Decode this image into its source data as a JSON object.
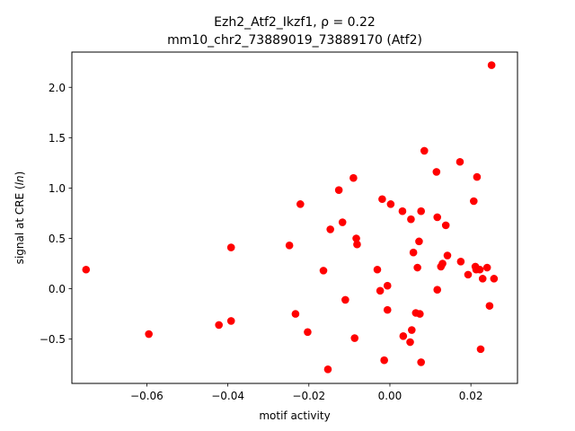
{
  "title_line1": "Ezh2_Atf2_Ikzf1, ",
  "title_rho": "ρ = 0.22",
  "title_line2": "mm10_chr2_73889019_73889170 (Atf2)",
  "chart_data": {
    "type": "scatter",
    "xlabel": "motif activity",
    "ylabel_prefix": "signal at CRE (",
    "ylabel_italic": "ln",
    "ylabel_suffix": ")",
    "xlim": [
      -0.0785,
      0.0315
    ],
    "ylim": [
      -0.94,
      2.35
    ],
    "xticks": [
      -0.06,
      -0.04,
      -0.02,
      0.0,
      0.02
    ],
    "xtick_labels": [
      "−0.06",
      "−0.04",
      "−0.02",
      "0.00",
      "0.02"
    ],
    "yticks": [
      -0.5,
      0.0,
      0.5,
      1.0,
      1.5,
      2.0
    ],
    "ytick_labels": [
      "−0.5",
      "0.0",
      "0.5",
      "1.0",
      "1.5",
      "2.0"
    ],
    "marker_color": "#ff0000",
    "points": [
      [
        -0.075,
        0.19
      ],
      [
        -0.0595,
        -0.45
      ],
      [
        -0.0422,
        -0.36
      ],
      [
        -0.0392,
        -0.32
      ],
      [
        -0.0392,
        0.41
      ],
      [
        -0.0248,
        0.43
      ],
      [
        -0.0233,
        -0.25
      ],
      [
        -0.0221,
        0.84
      ],
      [
        -0.0203,
        -0.43
      ],
      [
        -0.0164,
        0.18
      ],
      [
        -0.0153,
        -0.8
      ],
      [
        -0.0147,
        0.59
      ],
      [
        -0.0126,
        0.98
      ],
      [
        -0.0117,
        0.66
      ],
      [
        -0.011,
        -0.11
      ],
      [
        -0.009,
        1.1
      ],
      [
        -0.0087,
        -0.49
      ],
      [
        -0.0083,
        0.5
      ],
      [
        -0.0081,
        0.44
      ],
      [
        -0.0031,
        0.19
      ],
      [
        -0.0024,
        -0.02
      ],
      [
        -0.0019,
        0.89
      ],
      [
        -0.0014,
        -0.71
      ],
      [
        -0.0006,
        0.03
      ],
      [
        -0.0006,
        -0.21
      ],
      [
        0.0002,
        0.84
      ],
      [
        0.0031,
        0.77
      ],
      [
        0.0033,
        -0.47
      ],
      [
        0.005,
        -0.53
      ],
      [
        0.0052,
        0.69
      ],
      [
        0.0054,
        -0.41
      ],
      [
        0.0058,
        0.36
      ],
      [
        0.0064,
        -0.24
      ],
      [
        0.0068,
        0.21
      ],
      [
        0.0072,
        0.47
      ],
      [
        0.0074,
        -0.25
      ],
      [
        0.0077,
        0.77
      ],
      [
        0.0077,
        -0.73
      ],
      [
        0.0085,
        1.37
      ],
      [
        0.0115,
        1.16
      ],
      [
        0.0117,
        0.71
      ],
      [
        0.0117,
        -0.01
      ],
      [
        0.0126,
        0.22
      ],
      [
        0.013,
        0.25
      ],
      [
        0.0138,
        0.63
      ],
      [
        0.0142,
        0.33
      ],
      [
        0.0173,
        1.26
      ],
      [
        0.0175,
        0.27
      ],
      [
        0.0193,
        0.14
      ],
      [
        0.0207,
        0.87
      ],
      [
        0.0211,
        0.22
      ],
      [
        0.0213,
        0.19
      ],
      [
        0.0215,
        1.11
      ],
      [
        0.0222,
        0.19
      ],
      [
        0.0224,
        -0.6
      ],
      [
        0.0229,
        0.1
      ],
      [
        0.024,
        0.21
      ],
      [
        0.0246,
        -0.17
      ],
      [
        0.0251,
        2.22
      ],
      [
        0.0257,
        0.1
      ]
    ]
  }
}
